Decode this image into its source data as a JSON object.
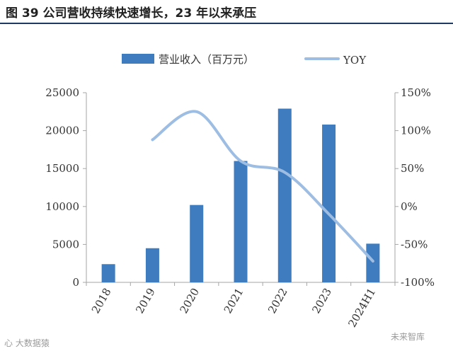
{
  "figure": {
    "title": "图 39 公司营收持续快速增长，23 年以来承压"
  },
  "watermarks": {
    "left": "心 大数据猿",
    "right": "未来智库"
  },
  "colors": {
    "bar": "#3f7cbf",
    "line": "#9dbde3",
    "axis": "#a6a6a6",
    "rule": "#1f3864"
  },
  "chart_data": {
    "type": "bar",
    "categories": [
      "2018",
      "2019",
      "2020",
      "2021",
      "2022",
      "2023",
      "2024H1"
    ],
    "series": [
      {
        "name": "营业收入（百万元）",
        "type": "bar",
        "axis": "left",
        "values": [
          2400,
          4500,
          10200,
          16000,
          22900,
          20800,
          5100
        ]
      },
      {
        "name": "YOY",
        "type": "line",
        "axis": "right",
        "smooth": true,
        "x": [
          "2019",
          "2020",
          "2021",
          "2022",
          "2023",
          "2024H1"
        ],
        "values": [
          88,
          125,
          60,
          45,
          -10,
          -72
        ]
      }
    ],
    "left_axis": {
      "min": 0,
      "max": 25000,
      "ticks": [
        "0",
        "5000",
        "10000",
        "15000",
        "20000",
        "25000"
      ]
    },
    "right_axis": {
      "min": -100,
      "max": 150,
      "unit": "%",
      "ticks": [
        "-100%",
        "-50%",
        "0%",
        "50%",
        "100%",
        "150%"
      ]
    },
    "legend_position": "top",
    "grid": false
  }
}
